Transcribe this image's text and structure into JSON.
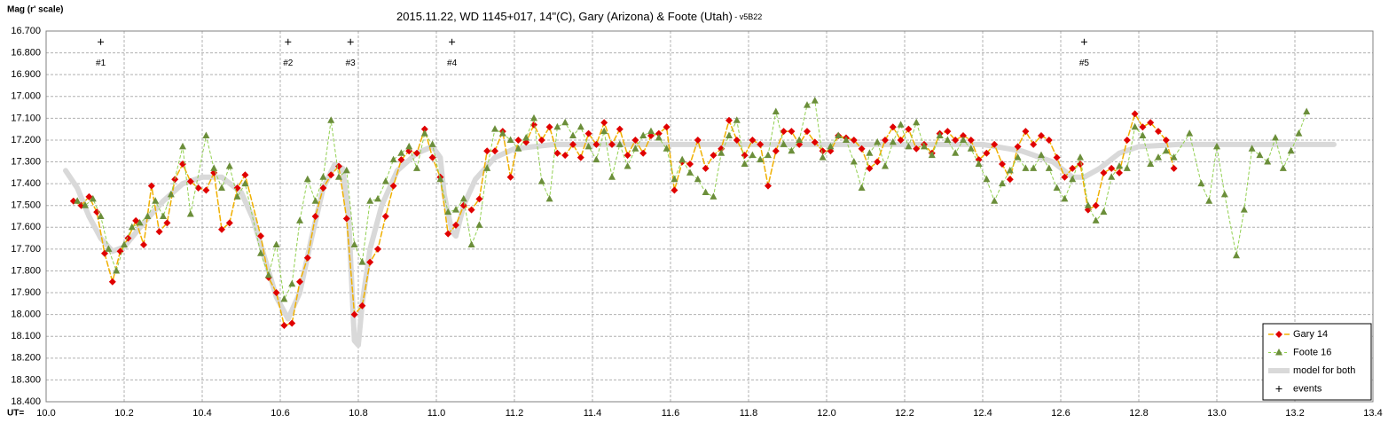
{
  "chart_data": {
    "type": "line",
    "title": "2015.11.22, WD 1145+017, 14\"(C), Gary (Arizona)  & Foote (Utah)",
    "subtitle": " - v5B22",
    "y_label": "Mag (r' scale)",
    "x_label": "UT=",
    "xlim": [
      10.0,
      13.4
    ],
    "xticks": [
      {
        "value": 10.0,
        "label": "10.0"
      },
      10.2,
      10.4,
      10.6,
      10.8,
      {
        "value": 11.0,
        "label": "11.0"
      },
      11.2,
      11.4,
      11.6,
      11.8,
      {
        "value": 12.0,
        "label": "12.0"
      },
      12.2,
      12.4,
      12.6,
      12.8,
      {
        "value": 13.0,
        "label": "13.0"
      },
      13.2,
      13.4
    ],
    "ylim": [
      16.7,
      18.4
    ],
    "y_inverted": true,
    "yticks": [
      {
        "value": 16.7,
        "label": "16.700"
      },
      {
        "value": 16.8,
        "label": "16.800"
      },
      {
        "value": 16.9,
        "label": "16.900"
      },
      {
        "value": 17.0,
        "label": "17.000"
      },
      {
        "value": 17.1,
        "label": "17.100"
      },
      {
        "value": 17.2,
        "label": "17.200"
      },
      {
        "value": 17.3,
        "label": "17.300"
      },
      {
        "value": 17.4,
        "label": "17.400"
      },
      {
        "value": 17.5,
        "label": "17.500"
      },
      {
        "value": 17.6,
        "label": "17.600"
      },
      {
        "value": 17.7,
        "label": "17.700"
      },
      {
        "value": 17.8,
        "label": "17.800"
      },
      {
        "value": 17.9,
        "label": "17.900"
      },
      {
        "value": 18.0,
        "label": "18.000"
      },
      {
        "value": 18.1,
        "label": "18.100"
      },
      {
        "value": 18.2,
        "label": "18.200"
      },
      {
        "value": 18.3,
        "label": "18.300"
      },
      {
        "value": 18.4,
        "label": "18.400"
      }
    ],
    "grid": true,
    "legend": "bottom-right",
    "series": [
      {
        "name": "Gary 14",
        "color": "#e00000",
        "line_color": "#f0b000",
        "line_style": "dash",
        "line_width": 1.5,
        "marker": "diamond",
        "x": [
          10.07,
          10.09,
          10.11,
          10.13,
          10.15,
          10.17,
          10.19,
          10.21,
          10.23,
          10.25,
          10.27,
          10.29,
          10.31,
          10.33,
          10.35,
          10.37,
          10.39,
          10.41,
          10.43,
          10.45,
          10.47,
          10.49,
          10.51,
          10.55,
          10.57,
          10.59,
          10.61,
          10.63,
          10.65,
          10.67,
          10.69,
          10.71,
          10.73,
          10.75,
          10.77,
          10.79,
          10.81,
          10.83,
          10.85,
          10.87,
          10.89,
          10.91,
          10.93,
          10.95,
          10.97,
          10.99,
          11.01,
          11.03,
          11.05,
          11.07,
          11.09,
          11.11,
          11.13,
          11.15,
          11.17,
          11.19,
          11.21,
          11.23,
          11.25,
          11.27,
          11.29,
          11.31,
          11.33,
          11.35,
          11.37,
          11.39,
          11.41,
          11.43,
          11.45,
          11.47,
          11.49,
          11.51,
          11.53,
          11.55,
          11.57,
          11.59,
          11.61,
          11.63,
          11.65,
          11.67,
          11.69,
          11.71,
          11.73,
          11.75,
          11.77,
          11.79,
          11.81,
          11.83,
          11.85,
          11.87,
          11.89,
          11.91,
          11.93,
          11.95,
          11.97,
          11.99,
          12.01,
          12.03,
          12.05,
          12.07,
          12.09,
          12.11,
          12.13,
          12.15,
          12.17,
          12.19,
          12.21,
          12.23,
          12.25,
          12.27,
          12.29,
          12.31,
          12.33,
          12.35,
          12.37,
          12.39,
          12.41,
          12.43,
          12.45,
          12.47,
          12.49,
          12.51,
          12.53,
          12.55,
          12.57,
          12.59,
          12.61,
          12.63,
          12.65,
          12.67,
          12.69,
          12.71,
          12.73,
          12.75,
          12.77,
          12.79,
          12.81,
          12.83,
          12.85,
          12.87,
          12.89
        ],
        "values": [
          17.48,
          17.5,
          17.46,
          17.53,
          17.72,
          17.85,
          17.71,
          17.65,
          17.57,
          17.68,
          17.41,
          17.62,
          17.58,
          17.38,
          17.31,
          17.39,
          17.42,
          17.43,
          17.35,
          17.61,
          17.58,
          17.42,
          17.36,
          17.64,
          17.83,
          17.9,
          18.05,
          18.04,
          17.85,
          17.74,
          17.55,
          17.42,
          17.36,
          17.32,
          17.56,
          18.0,
          17.96,
          17.76,
          17.7,
          17.55,
          17.41,
          17.29,
          17.25,
          17.26,
          17.15,
          17.28,
          17.37,
          17.63,
          17.59,
          17.5,
          17.52,
          17.47,
          17.25,
          17.25,
          17.16,
          17.37,
          17.2,
          17.21,
          17.13,
          17.2,
          17.14,
          17.26,
          17.27,
          17.22,
          17.28,
          17.17,
          17.22,
          17.12,
          17.22,
          17.15,
          17.27,
          17.2,
          17.26,
          17.18,
          17.17,
          17.14,
          17.43,
          17.3,
          17.31,
          17.2,
          17.33,
          17.27,
          17.24,
          17.11,
          17.2,
          17.27,
          17.2,
          17.22,
          17.41,
          17.25,
          17.16,
          17.16,
          17.22,
          17.16,
          17.21,
          17.25,
          17.25,
          17.18,
          17.19,
          17.2,
          17.24,
          17.33,
          17.3,
          17.2,
          17.14,
          17.2,
          17.15,
          17.24,
          17.22,
          17.26,
          17.17,
          17.16,
          17.2,
          17.18,
          17.2,
          17.29,
          17.26,
          17.22,
          17.31,
          17.38,
          17.23,
          17.16,
          17.22,
          17.18,
          17.2,
          17.28,
          17.37,
          17.33,
          17.31,
          17.52,
          17.5,
          17.35,
          17.33,
          17.35,
          17.2,
          17.08,
          17.14,
          17.12,
          17.16,
          17.2,
          17.33
        ]
      },
      {
        "name": "Foote 16",
        "color": "#6b8e3a",
        "line_color": "#92d050",
        "line_style": "dash",
        "line_width": 1,
        "marker": "triangle",
        "x": [
          10.08,
          10.1,
          10.12,
          10.14,
          10.16,
          10.18,
          10.2,
          10.22,
          10.24,
          10.26,
          10.28,
          10.3,
          10.32,
          10.35,
          10.37,
          10.41,
          10.43,
          10.45,
          10.47,
          10.49,
          10.51,
          10.55,
          10.57,
          10.59,
          10.61,
          10.63,
          10.65,
          10.67,
          10.69,
          10.71,
          10.73,
          10.75,
          10.77,
          10.79,
          10.81,
          10.83,
          10.85,
          10.87,
          10.89,
          10.91,
          10.93,
          10.95,
          10.97,
          10.99,
          11.01,
          11.03,
          11.05,
          11.07,
          11.09,
          11.11,
          11.13,
          11.15,
          11.17,
          11.19,
          11.21,
          11.23,
          11.25,
          11.27,
          11.29,
          11.31,
          11.33,
          11.35,
          11.37,
          11.39,
          11.41,
          11.43,
          11.45,
          11.47,
          11.49,
          11.51,
          11.53,
          11.55,
          11.57,
          11.59,
          11.61,
          11.63,
          11.65,
          11.67,
          11.69,
          11.71,
          11.73,
          11.75,
          11.77,
          11.79,
          11.81,
          11.83,
          11.85,
          11.87,
          11.89,
          11.91,
          11.93,
          11.95,
          11.97,
          11.99,
          12.01,
          12.03,
          12.05,
          12.07,
          12.09,
          12.11,
          12.13,
          12.15,
          12.17,
          12.19,
          12.21,
          12.23,
          12.25,
          12.27,
          12.29,
          12.31,
          12.33,
          12.35,
          12.37,
          12.39,
          12.41,
          12.43,
          12.45,
          12.47,
          12.49,
          12.51,
          12.53,
          12.55,
          12.57,
          12.59,
          12.61,
          12.63,
          12.65,
          12.67,
          12.69,
          12.71,
          12.73,
          12.75,
          12.77,
          12.79,
          12.81,
          12.83,
          12.85,
          12.87,
          12.89,
          12.93,
          12.96,
          12.98,
          13.0,
          13.02,
          13.05,
          13.07,
          13.09,
          13.11,
          13.13,
          13.15,
          13.17,
          13.19,
          13.21,
          13.23
        ],
        "values": [
          17.48,
          17.5,
          17.47,
          17.55,
          17.7,
          17.8,
          17.68,
          17.6,
          17.58,
          17.55,
          17.48,
          17.55,
          17.45,
          17.23,
          17.54,
          17.18,
          17.33,
          17.42,
          17.32,
          17.46,
          17.4,
          17.72,
          17.82,
          17.68,
          17.93,
          17.86,
          17.57,
          17.38,
          17.48,
          17.37,
          17.11,
          17.37,
          17.34,
          17.68,
          17.76,
          17.48,
          17.47,
          17.39,
          17.29,
          17.26,
          17.23,
          17.33,
          17.17,
          17.22,
          17.38,
          17.53,
          17.52,
          17.47,
          17.68,
          17.59,
          17.33,
          17.15,
          17.17,
          17.2,
          17.24,
          17.19,
          17.1,
          17.39,
          17.47,
          17.14,
          17.12,
          17.18,
          17.14,
          17.23,
          17.29,
          17.16,
          17.37,
          17.22,
          17.32,
          17.24,
          17.18,
          17.16,
          17.19,
          17.24,
          17.38,
          17.29,
          17.35,
          17.38,
          17.44,
          17.46,
          17.26,
          17.18,
          17.11,
          17.31,
          17.27,
          17.29,
          17.27,
          17.07,
          17.22,
          17.25,
          17.2,
          17.04,
          17.02,
          17.28,
          17.23,
          17.18,
          17.2,
          17.3,
          17.42,
          17.26,
          17.21,
          17.32,
          17.21,
          17.13,
          17.23,
          17.12,
          17.23,
          17.27,
          17.18,
          17.2,
          17.26,
          17.2,
          17.24,
          17.31,
          17.38,
          17.48,
          17.4,
          17.34,
          17.28,
          17.33,
          17.33,
          17.27,
          17.33,
          17.42,
          17.47,
          17.38,
          17.28,
          17.5,
          17.57,
          17.53,
          17.37,
          17.32,
          17.33,
          17.14,
          17.18,
          17.31,
          17.28,
          17.25,
          17.28,
          17.17,
          17.4,
          17.48,
          17.23,
          17.45,
          17.73,
          17.52,
          17.24,
          17.27,
          17.3,
          17.19,
          17.33,
          17.25,
          17.17,
          17.07
        ]
      },
      {
        "name": "model for both",
        "color": "#d9d9d9",
        "line_style": "solid",
        "line_width": 6,
        "marker": "none",
        "x": [
          10.05,
          10.08,
          10.11,
          10.14,
          10.17,
          10.2,
          10.25,
          10.3,
          10.35,
          10.4,
          10.45,
          10.5,
          10.53,
          10.56,
          10.59,
          10.62,
          10.65,
          10.68,
          10.71,
          10.74,
          10.76,
          10.775,
          10.79,
          10.8,
          10.81,
          10.83,
          10.86,
          10.9,
          10.95,
          10.99,
          11.01,
          11.02,
          11.04,
          11.05,
          11.07,
          11.1,
          11.15,
          11.2,
          11.3,
          12.4,
          12.5,
          12.58,
          12.63,
          12.66,
          12.7,
          12.75,
          12.8,
          12.9,
          13.3
        ],
        "values": [
          17.34,
          17.42,
          17.55,
          17.65,
          17.71,
          17.69,
          17.58,
          17.48,
          17.4,
          17.37,
          17.37,
          17.44,
          17.56,
          17.74,
          17.92,
          18.02,
          17.9,
          17.65,
          17.42,
          17.31,
          17.33,
          17.55,
          18.12,
          18.14,
          17.95,
          17.7,
          17.5,
          17.34,
          17.26,
          17.23,
          17.28,
          17.45,
          17.62,
          17.64,
          17.5,
          17.38,
          17.28,
          17.24,
          17.22,
          17.22,
          17.25,
          17.3,
          17.37,
          17.37,
          17.33,
          17.26,
          17.23,
          17.22,
          17.22
        ]
      },
      {
        "name": "events",
        "color": "#000000",
        "line_style": "none",
        "marker": "plus",
        "x": [
          10.14,
          10.62,
          10.78,
          11.04,
          12.66
        ],
        "values": [
          16.75,
          16.75,
          16.75,
          16.75,
          16.75
        ],
        "labels": [
          "#1",
          "#2",
          "#3",
          "#4",
          "#5"
        ]
      }
    ]
  }
}
